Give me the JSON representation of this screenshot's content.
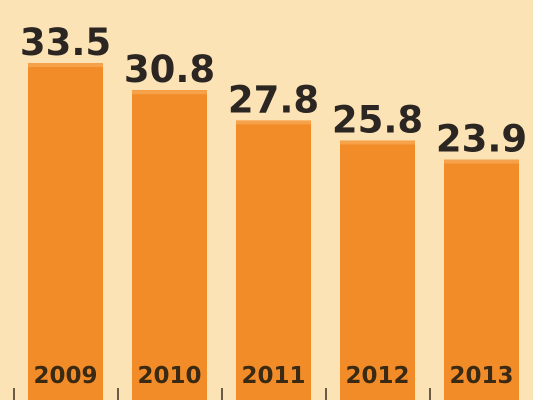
{
  "chart_data": {
    "type": "bar",
    "categories": [
      "2009",
      "2010",
      "2011",
      "2012",
      "2013"
    ],
    "values": [
      33.5,
      30.8,
      27.8,
      25.8,
      23.9
    ],
    "data_labels": [
      "33.5",
      "30.8",
      "27.8",
      "25.8",
      "23.9"
    ],
    "title": "",
    "xlabel": "",
    "ylabel": "",
    "ylim": [
      0,
      33.5
    ],
    "grid": false,
    "legend": "none",
    "category_labels_position": "inside-bottom",
    "colors": {
      "background": "#FCE3B6",
      "bar": "#F28C28",
      "bar_highlight": "#F6A24A",
      "label_text": "#2B2622",
      "category_text": "#3A2A14",
      "tick": "#6A5A48"
    }
  }
}
